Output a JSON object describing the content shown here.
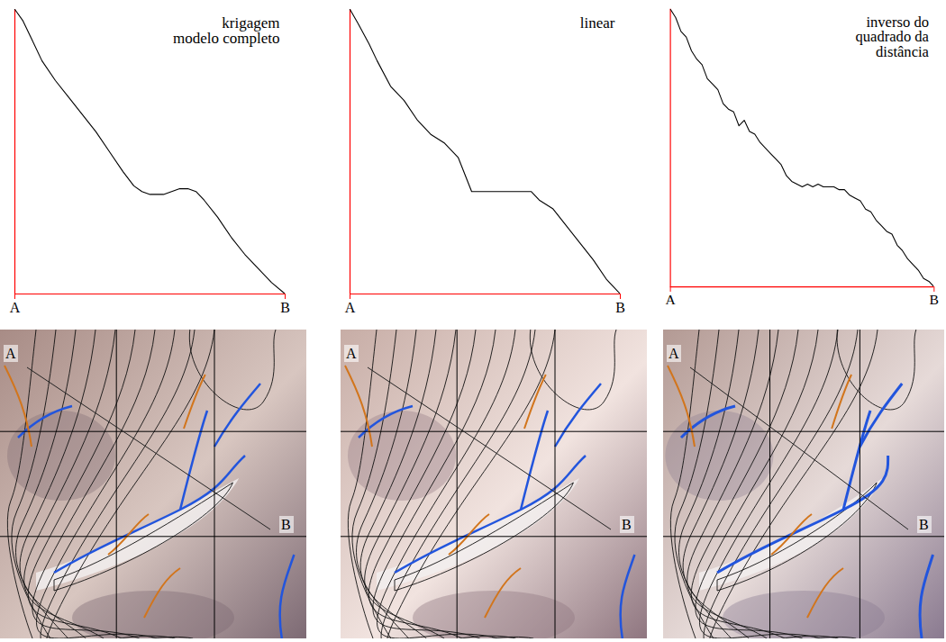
{
  "chart_data": [
    {
      "type": "line",
      "title": "krigagem\nmodelo completo",
      "color": "#000000",
      "x": [
        0,
        3,
        6,
        10,
        15,
        20,
        25,
        30,
        35,
        40,
        44,
        47,
        50,
        55,
        58,
        61,
        64,
        67,
        70,
        75,
        80,
        85,
        90,
        95,
        100
      ],
      "values": [
        100,
        96,
        90,
        82,
        75,
        69,
        63,
        57,
        50,
        43,
        38,
        36,
        35,
        35,
        36,
        37,
        37,
        36,
        33,
        27,
        20,
        14,
        9,
        4,
        0
      ],
      "xlim": [
        0,
        100
      ],
      "ylim": [
        0,
        100
      ],
      "xticks": [
        {
          "value": 0,
          "label": "A"
        },
        {
          "value": 100,
          "label": "B"
        }
      ],
      "tick_labels": "x"
    },
    {
      "type": "line",
      "title": "linear",
      "color": "#000000",
      "x": [
        0,
        3,
        7,
        10,
        15,
        20,
        25,
        30,
        35,
        40,
        45,
        50,
        55,
        60,
        67,
        70,
        75,
        80,
        85,
        90,
        95,
        100
      ],
      "values": [
        100,
        95,
        88,
        82,
        73,
        68,
        61,
        56,
        53,
        48,
        36,
        36,
        36,
        36,
        36,
        33,
        30,
        24,
        18,
        12,
        5,
        0
      ],
      "xlim": [
        0,
        100
      ],
      "ylim": [
        0,
        100
      ],
      "xticks": [
        {
          "value": 0,
          "label": "A"
        },
        {
          "value": 100,
          "label": "B"
        }
      ],
      "tick_labels": "x"
    },
    {
      "type": "line",
      "title": "inverso do\nquadrado da\ndistância",
      "color": "#000000",
      "x": [
        0,
        2,
        4,
        6,
        8,
        10,
        12,
        14,
        16,
        18,
        20,
        22,
        24,
        26,
        28,
        30,
        32,
        34,
        36,
        38,
        40,
        42,
        44,
        46,
        48,
        50,
        52,
        54,
        56,
        58,
        60,
        62,
        64,
        66,
        68,
        70,
        72,
        74,
        76,
        78,
        80,
        82,
        84,
        86,
        88,
        90,
        92,
        94,
        96,
        98,
        100
      ],
      "values": [
        100,
        97,
        92,
        90,
        85,
        82,
        80,
        75,
        73,
        71,
        66,
        64,
        63,
        58,
        60,
        56,
        55,
        52,
        50,
        48,
        46,
        44,
        40,
        38,
        37,
        36,
        37,
        36,
        37,
        36,
        36,
        36,
        35,
        35,
        33,
        32,
        31,
        28,
        27,
        24,
        22,
        20,
        19,
        15,
        13,
        10,
        8,
        6,
        3,
        2,
        0
      ],
      "xlim": [
        0,
        100
      ],
      "ylim": [
        0,
        100
      ],
      "xticks": [
        {
          "value": 0,
          "label": "A"
        },
        {
          "value": 100,
          "label": "B"
        }
      ],
      "tick_labels": "x"
    }
  ],
  "maps": [
    {
      "labels": [
        "A",
        "B"
      ]
    },
    {
      "labels": [
        "A",
        "B"
      ]
    },
    {
      "labels": [
        "A",
        "B"
      ]
    }
  ]
}
